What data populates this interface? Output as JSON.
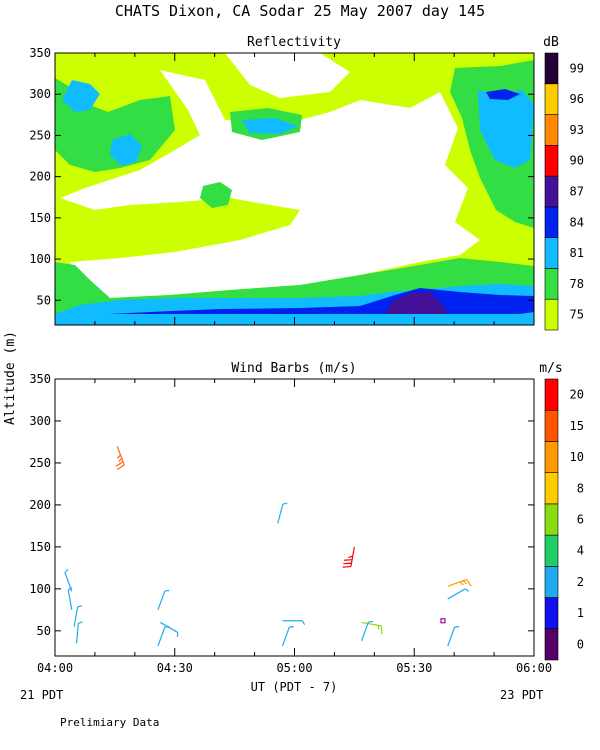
{
  "header": {
    "title": "CHATS Dixon, CA  Sodar  25 May 2007  day 145",
    "footnote": "Prelimiary Data"
  },
  "chart_data": [
    {
      "type": "heatmap",
      "title": "Reflectivity",
      "ylim": [
        20,
        350
      ],
      "yticks": [
        50,
        100,
        150,
        200,
        250,
        300,
        350
      ],
      "colorbar": {
        "unit": "dB",
        "levels": [
          75,
          78,
          81,
          84,
          87,
          90,
          93,
          96,
          99
        ],
        "colors": [
          "#ccff00",
          "#33dd44",
          "#11bbff",
          "#0022ee",
          "#441199",
          "#ff0000",
          "#ff8800",
          "#ffcc00",
          "#220033"
        ]
      },
      "regions": [
        {
          "level": 75,
          "color": "#ccff00",
          "description": "background 75-78 dB"
        },
        {
          "level": 78,
          "color": "#33dd44",
          "description": "patches 78-81 dB"
        },
        {
          "level": 81,
          "color": "#11bbff",
          "description": "patches 81-84 dB"
        },
        {
          "level": 84,
          "color": "#0022ee",
          "description": "near-surface band 84-87 dB"
        },
        {
          "level": 87,
          "color": "#441199",
          "description": "core ~05:30 near 50 m"
        }
      ]
    },
    {
      "type": "scatter",
      "title": "Wind Barbs (m/s)",
      "xlabel": "UT  (PDT - 7)",
      "ylabel": "Altitude  (m)",
      "ylim": [
        20,
        350
      ],
      "yticks": [
        50,
        100,
        150,
        200,
        250,
        300,
        350
      ],
      "x_ticks": [
        "04:00",
        "04:30",
        "05:00",
        "05:30",
        "06:00"
      ],
      "x_tick_hours": [
        4.0,
        4.5,
        5.0,
        5.5,
        6.0
      ],
      "x_sublabels": {
        "left": "21 PDT",
        "right": "23 PDT"
      },
      "colorbar": {
        "unit": "m/s",
        "levels": [
          0,
          1,
          2,
          4,
          6,
          8,
          10,
          15,
          20
        ],
        "colors": [
          "#550066",
          "#1111ee",
          "#22aaee",
          "#22cc66",
          "#88dd11",
          "#ffcc00",
          "#ff9900",
          "#ff5500",
          "#ff0000"
        ]
      },
      "barbs": [
        {
          "t": 4.07,
          "z": 97,
          "speed": 2.5,
          "dir": 340,
          "color": "#22aaee"
        },
        {
          "t": 4.07,
          "z": 75,
          "speed": 2.5,
          "dir": 350,
          "color": "#22aaee"
        },
        {
          "t": 4.08,
          "z": 55,
          "speed": 2.2,
          "dir": 10,
          "color": "#22aaee"
        },
        {
          "t": 4.09,
          "z": 35,
          "speed": 2.0,
          "dir": 5,
          "color": "#22aaee"
        },
        {
          "t": 4.26,
          "z": 270,
          "speed": 14,
          "dir": 160,
          "color": "#ff6600"
        },
        {
          "t": 4.43,
          "z": 75,
          "speed": 2.5,
          "dir": 20,
          "color": "#22aaee"
        },
        {
          "t": 4.44,
          "z": 60,
          "speed": 2.2,
          "dir": 120,
          "color": "#22aaee"
        },
        {
          "t": 4.43,
          "z": 32,
          "speed": 2.0,
          "dir": 20,
          "color": "#22aaee"
        },
        {
          "t": 4.93,
          "z": 178,
          "speed": 2.5,
          "dir": 15,
          "color": "#22aaee"
        },
        {
          "t": 4.95,
          "z": 62,
          "speed": 2.2,
          "dir": 90,
          "color": "#22aaee"
        },
        {
          "t": 4.95,
          "z": 32,
          "speed": 2.0,
          "dir": 20,
          "color": "#22aaee"
        },
        {
          "t": 5.25,
          "z": 150,
          "speed": 18,
          "dir": 190,
          "color": "#ff0000"
        },
        {
          "t": 5.28,
          "z": 60,
          "speed": 6.5,
          "dir": 100,
          "color": "#88dd11"
        },
        {
          "t": 5.28,
          "z": 38,
          "speed": 2.0,
          "dir": 20,
          "color": "#22aaee"
        },
        {
          "t": 5.64,
          "z": 103,
          "speed": 9.5,
          "dir": 70,
          "color": "#ff9900"
        },
        {
          "t": 5.64,
          "z": 88,
          "speed": 2.5,
          "dir": 60,
          "color": "#22aaee"
        },
        {
          "t": 5.62,
          "z": 62,
          "speed": 0.5,
          "dir": 0,
          "color": "#aa00aa"
        },
        {
          "t": 5.64,
          "z": 32,
          "speed": 2.0,
          "dir": 20,
          "color": "#22aaee"
        }
      ]
    }
  ]
}
